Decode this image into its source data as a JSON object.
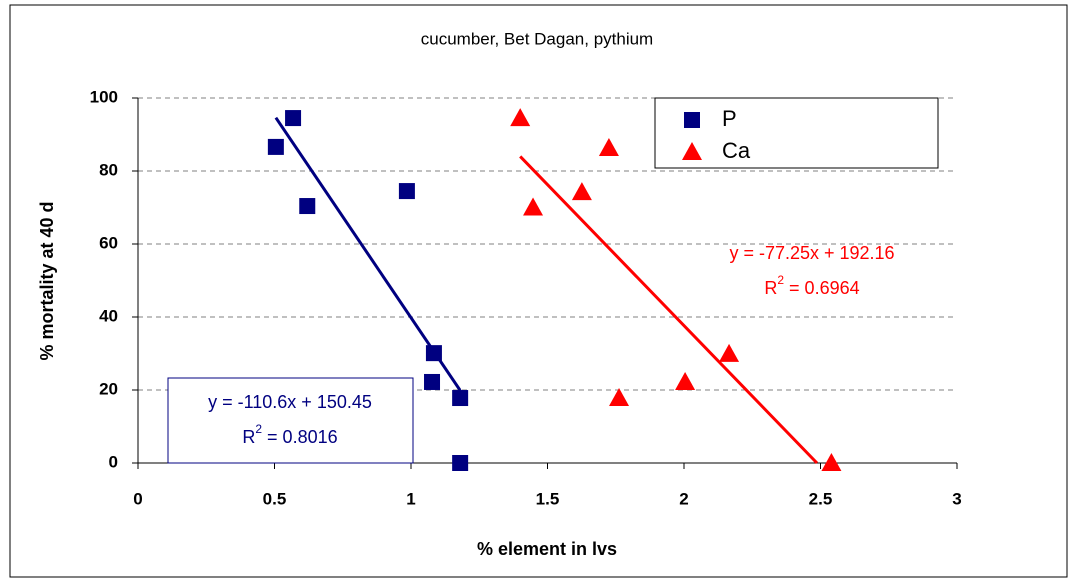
{
  "chart_data": {
    "type": "scatter",
    "title": "cucumber, Bet Dagan, pythium",
    "x_label": "% element in lvs",
    "y_label": "% mortality at 40 d",
    "xlim": [
      0,
      3
    ],
    "xticks": [
      0,
      0.5,
      1,
      1.5,
      2,
      2.5,
      3
    ],
    "ylim": [
      0,
      100
    ],
    "yticks": [
      0,
      20,
      40,
      60,
      80,
      100
    ],
    "grid": true,
    "legend": "top-right",
    "series": [
      {
        "name": "P",
        "color": "#000080",
        "marker": "square",
        "x": [
          0.505,
          0.568,
          0.62,
          0.985,
          1.084,
          1.077,
          1.18,
          1.18
        ],
        "values": [
          86.6,
          94.5,
          70.4,
          74.5,
          30.1,
          22.2,
          17.8,
          0
        ]
      },
      {
        "name": "Ca",
        "color": "#ff0000",
        "marker": "triangle",
        "x": [
          1.4,
          1.447,
          1.725,
          1.626,
          1.762,
          2.004,
          2.165,
          2.54
        ],
        "values": [
          94.5,
          70,
          86.3,
          74.2,
          17.8,
          22.2,
          29.9,
          0
        ]
      }
    ],
    "trendlines": [
      {
        "series": 0,
        "x": [
          0.505,
          1.18
        ],
        "values": [
          94.6,
          19.9
        ],
        "equation": "y = -110.6x + 150.45",
        "r2_symbol": "R",
        "r2_power": "2",
        "r2_text": " = 0.8016"
      },
      {
        "series": 1,
        "x": [
          1.4,
          2.487
        ],
        "values": [
          84.0,
          0
        ],
        "equation": "y = -77.25x + 192.16",
        "r2_symbol": "R",
        "r2_power": "2",
        "r2_text": " = 0.6964"
      }
    ]
  }
}
